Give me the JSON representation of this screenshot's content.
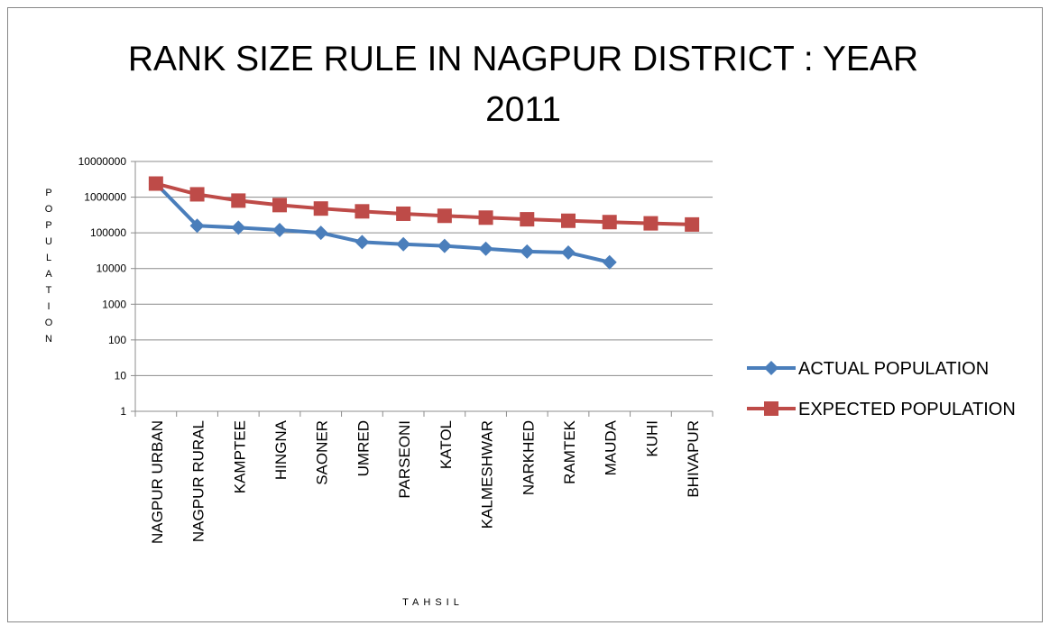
{
  "chart_data": {
    "type": "line",
    "title": "RANK SIZE RULE IN NAGPUR DISTRICT : YEAR 2011",
    "x_label": "TAHSIL",
    "y_label": "POPULATION",
    "categories": [
      "NAGPUR URBAN",
      "NAGPUR RURAL",
      "KAMPTEE",
      "HINGNA",
      "SAONER",
      "UMRED",
      "PARSEONI",
      "KATOL",
      "KALMESHWAR",
      "NARKHED",
      "RAMTEK",
      "MAUDA",
      "KUHI",
      "BHIVAPUR"
    ],
    "series": [
      {
        "name": "ACTUAL POPULATION",
        "color": "#4a7ebb",
        "marker": "diamond",
        "values": [
          2400000,
          158000,
          140000,
          120000,
          100000,
          55000,
          48000,
          43000,
          36000,
          30000,
          28000,
          15000,
          null,
          null
        ]
      },
      {
        "name": "EXPECTED POPULATION",
        "color": "#be4b48",
        "marker": "square",
        "values": [
          2400000,
          1200000,
          800000,
          600000,
          480000,
          400000,
          342857,
          300000,
          266667,
          240000,
          218182,
          200000,
          184615,
          171429
        ]
      }
    ],
    "ylim": [
      1,
      10000000
    ],
    "yticks": [
      1,
      10,
      100,
      1000,
      10000,
      100000,
      1000000,
      10000000
    ],
    "log_scale": true,
    "grid": true,
    "legend": "right"
  }
}
